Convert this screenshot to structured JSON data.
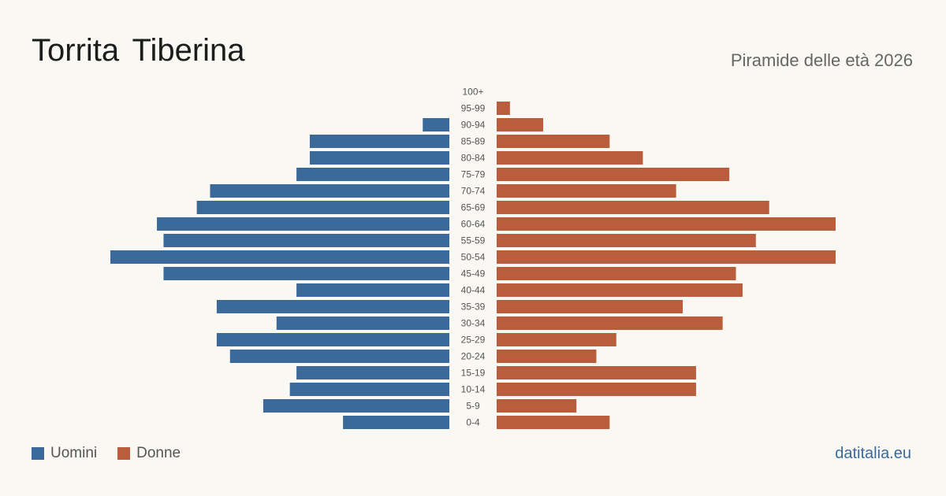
{
  "header": {
    "title": "Torrita Tiberina",
    "subtitle": "Piramide delle età 2026"
  },
  "legend": {
    "men_label": "Uomini",
    "women_label": "Donne"
  },
  "brand": "datitalia.eu",
  "colors": {
    "men": "#3b6a9a",
    "women": "#b95d3c",
    "background": "#faf8f3"
  },
  "chart_data": {
    "type": "bar",
    "orientation": "horizontal-pyramid",
    "categories": [
      "100+",
      "95-99",
      "90-94",
      "85-89",
      "80-84",
      "75-79",
      "70-74",
      "65-69",
      "60-64",
      "55-59",
      "50-54",
      "45-49",
      "40-44",
      "35-39",
      "30-34",
      "25-29",
      "20-24",
      "15-19",
      "10-14",
      "5-9",
      "0-4"
    ],
    "series": [
      {
        "name": "Uomini",
        "values": [
          0,
          0,
          4,
          21,
          21,
          23,
          36,
          38,
          44,
          43,
          51,
          43,
          23,
          35,
          26,
          35,
          33,
          23,
          24,
          28,
          16
        ]
      },
      {
        "name": "Donne",
        "values": [
          0,
          2,
          7,
          17,
          22,
          35,
          27,
          41,
          51,
          39,
          51,
          36,
          37,
          28,
          34,
          18,
          15,
          30,
          30,
          12,
          17
        ]
      }
    ],
    "xlim": [
      0,
      51
    ],
    "grid": false,
    "legend_position": "bottom-left"
  }
}
